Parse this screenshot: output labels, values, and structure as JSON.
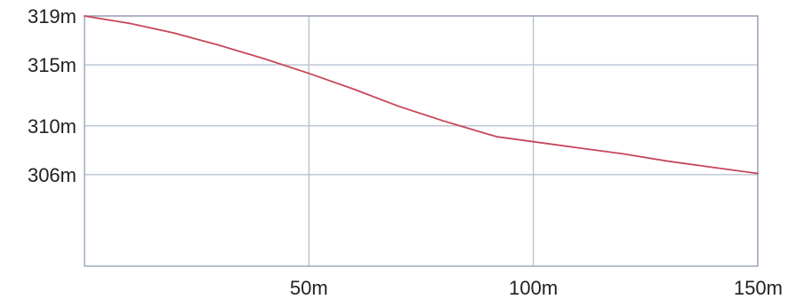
{
  "chart_data": {
    "type": "line",
    "title": "",
    "xlabel": "",
    "ylabel": "",
    "xlim": [
      0,
      150
    ],
    "ylim": [
      298.5,
      319
    ],
    "x_ticks": [
      {
        "value": 50,
        "label": "50m"
      },
      {
        "value": 100,
        "label": "100m"
      },
      {
        "value": 150,
        "label": "150m"
      }
    ],
    "y_ticks": [
      {
        "value": 319,
        "label": "319m"
      },
      {
        "value": 315,
        "label": "315m"
      },
      {
        "value": 310,
        "label": "310m"
      },
      {
        "value": 306,
        "label": "306m"
      }
    ],
    "grid": true,
    "legend": "none",
    "series": [
      {
        "color": "#c8465a",
        "x": [
          0,
          10,
          20,
          30,
          40,
          50,
          60,
          70,
          80,
          90,
          92,
          100,
          110,
          120,
          130,
          140,
          150
        ],
        "y": [
          319,
          318.4,
          317.6,
          316.6,
          315.5,
          314.3,
          313.0,
          311.6,
          310.4,
          309.3,
          309.1,
          308.7,
          308.2,
          307.7,
          307.1,
          306.6,
          306.1
        ]
      }
    ],
    "colors": {
      "grid": "#b9c3d3",
      "axis": "#9aa5b8",
      "text": "#222222"
    }
  }
}
